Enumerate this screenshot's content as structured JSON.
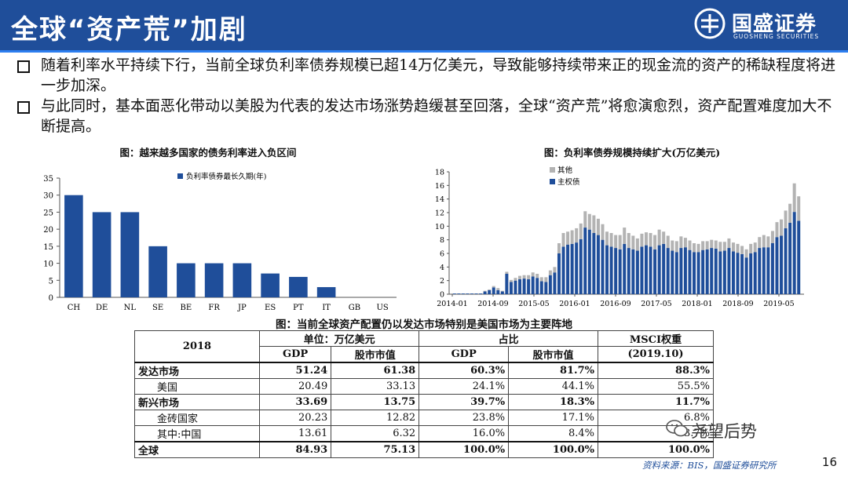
{
  "header": {
    "title": "全球“资产荒”加剧"
  },
  "logo": {
    "name_cn": "国盛证券",
    "name_en": "GUOSHENG SECURITIES"
  },
  "bullets": [
    "随着利率水平持续下行，当前全球负利率债券规模已超14万亿美元，导致能够持续带来正的现金流的资产的稀缺程度将进一步加深。",
    "与此同时，基本面恶化带动以美股为代表的发达市场涨势趋缓甚至回落，全球“资产荒”将愈演愈烈，资产配置难度加大不断提高。"
  ],
  "chart_data": [
    {
      "type": "bar",
      "title": "图：越来越多国家的债务利率进入负区间",
      "legend": "负利率债券最长久期(年)",
      "legend_position": "top-right",
      "categories": [
        "CH",
        "DE",
        "NL",
        "SE",
        "BE",
        "FR",
        "JP",
        "ES",
        "PT",
        "IT",
        "GB",
        "US"
      ],
      "values": [
        30,
        25,
        25,
        15,
        10,
        10,
        10,
        7,
        6,
        3,
        0,
        0
      ],
      "ylim": [
        0,
        35
      ],
      "yticks": [
        "0",
        "5",
        "10",
        "15",
        "20",
        "25",
        "30",
        "35"
      ],
      "color": "#1f4e9a"
    },
    {
      "type": "bar",
      "stacked": true,
      "title": "图：负利率债券规模持续扩大(万亿美元)",
      "legend_position": "top-left",
      "ylim": [
        0,
        18
      ],
      "yticks": [
        "0",
        "2",
        "4",
        "6",
        "8",
        "10",
        "12",
        "14",
        "16",
        "18"
      ],
      "xtick_labels": [
        "2014-01",
        "2014-09",
        "2015-05",
        "2016-01",
        "2016-09",
        "2017-05",
        "2018-01",
        "2018-09",
        "2019-05"
      ],
      "series": [
        {
          "name": "其他",
          "color": "#b3b3b3",
          "values": [
            0,
            0,
            0,
            0,
            0,
            0,
            0,
            0.1,
            0.1,
            0.2,
            0.3,
            0.1,
            0.3,
            0.3,
            0.4,
            0.5,
            0.5,
            0.6,
            0.6,
            0.6,
            0.6,
            0.7,
            0.7,
            0.8,
            1.5,
            2.0,
            1.9,
            2.0,
            2.1,
            2.3,
            2.4,
            2.3,
            2.6,
            2.4,
            2.3,
            2.0,
            2.0,
            1.9,
            2.1,
            2.4,
            2.2,
            2.0,
            1.8,
            1.9,
            1.9,
            2.0,
            2.1,
            2.3,
            1.8,
            1.8,
            1.5,
            1.6,
            1.7,
            1.4,
            1.4,
            1.3,
            1.2,
            1.3,
            1.2,
            1.2,
            1.2,
            1.4,
            1.3,
            1.4,
            1.3,
            1.3,
            1.2,
            1.2,
            1.4,
            1.4,
            1.6,
            1.8,
            1.6,
            1.8,
            2.2,
            2.4,
            2.6,
            2.8,
            4.2,
            3.6
          ]
        },
        {
          "name": "主权债",
          "color": "#1f4e9a",
          "values": [
            0.1,
            0.1,
            0.1,
            0.1,
            0.1,
            0.1,
            0.1,
            0.4,
            0.6,
            1.0,
            0.6,
            0.4,
            3.0,
            1.8,
            2.0,
            2.2,
            2.3,
            2.2,
            2.6,
            2.4,
            1.9,
            1.8,
            2.8,
            3.2,
            6.0,
            7.0,
            7.3,
            7.4,
            7.6,
            8.1,
            9.8,
            9.5,
            9.0,
            8.7,
            8.0,
            7.2,
            7.0,
            6.8,
            6.6,
            7.4,
            6.8,
            6.6,
            6.4,
            7.0,
            7.2,
            7.0,
            6.6,
            7.2,
            7.4,
            6.8,
            6.4,
            6.2,
            6.8,
            6.9,
            6.5,
            6.2,
            6.2,
            6.5,
            6.6,
            6.8,
            6.7,
            6.3,
            6.4,
            6.8,
            6.3,
            6.1,
            5.9,
            5.4,
            6.0,
            6.2,
            6.8,
            6.9,
            6.9,
            7.5,
            8.4,
            8.6,
            9.7,
            10.5,
            12.1,
            10.8
          ]
        }
      ]
    }
  ],
  "table": {
    "title": "图：当前全球资产配置仍以发达市场特别是美国市场为主要阵地",
    "header": {
      "year": "2018",
      "group_unit": "单位：万亿美元",
      "group_share": "占比",
      "msci_line1": "MSCI权重",
      "msci_line2": "(2019.10)",
      "col_gdp": "GDP",
      "col_mktcap": "股市市值",
      "col_gdp_share": "GDP",
      "col_mktcap_share": "股市市值"
    },
    "rows": [
      {
        "label": "发达市场",
        "gdp": "51.24",
        "mkt": "61.38",
        "gdp_s": "60.3%",
        "mkt_s": "81.7%",
        "msci": "88.3%"
      },
      {
        "label": "美国",
        "gdp": "20.49",
        "mkt": "33.13",
        "gdp_s": "24.1%",
        "mkt_s": "44.1%",
        "msci": "55.5%"
      },
      {
        "label": "新兴市场",
        "gdp": "33.69",
        "mkt": "13.75",
        "gdp_s": "39.7%",
        "mkt_s": "18.3%",
        "msci": "11.7%"
      },
      {
        "label": "金砖国家",
        "gdp": "20.23",
        "mkt": "12.82",
        "gdp_s": "23.8%",
        "mkt_s": "17.1%",
        "msci": "6.8%"
      },
      {
        "label": "其中:中国",
        "gdp": "13.61",
        "mkt": "6.32",
        "gdp_s": "16.0%",
        "mkt_s": "8.4%",
        "msci": "3.7%"
      },
      {
        "label": "全球",
        "gdp": "84.93",
        "mkt": "75.13",
        "gdp_s": "100.0%",
        "mkt_s": "100.0%",
        "msci": "100.0%"
      }
    ]
  },
  "source": "资料来源：BIS，国盛证券研究所",
  "watermark": "尧望后势",
  "page_number": "16"
}
